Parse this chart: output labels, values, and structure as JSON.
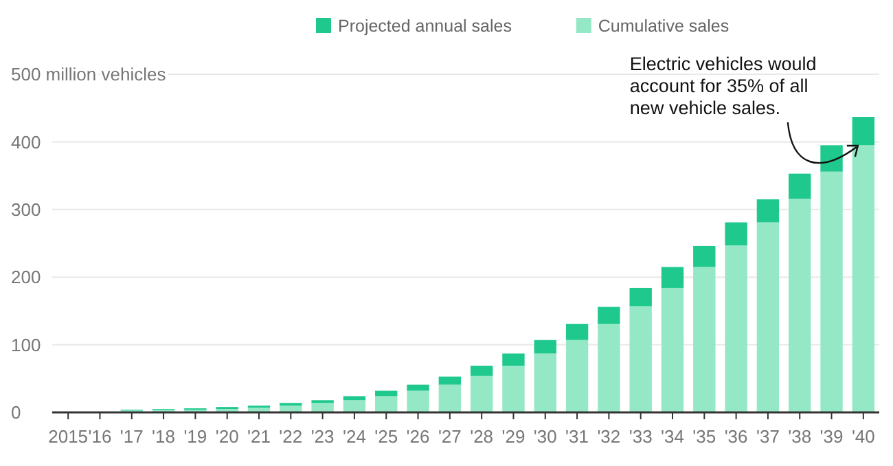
{
  "chart_data": {
    "type": "bar",
    "stacked": true,
    "categories": [
      "2015",
      "'16",
      "'17",
      "'18",
      "'19",
      "'20",
      "'21",
      "'22",
      "'23",
      "'24",
      "'25",
      "'26",
      "'27",
      "'28",
      "'29",
      "'30",
      "'31",
      "'32",
      "'33",
      "'34",
      "'35",
      "'36",
      "'37",
      "'38",
      "'39",
      "'40"
    ],
    "series": [
      {
        "name": "Cumulative sales",
        "color": "#95e8c6",
        "values": [
          null,
          null,
          3,
          4,
          4,
          5,
          7,
          10,
          14,
          18,
          24,
          32,
          41,
          54,
          69,
          87,
          107,
          131,
          157,
          184,
          215,
          247,
          281,
          316,
          356,
          395
        ]
      },
      {
        "name": "Projected annual sales",
        "color": "#1fc98e",
        "values": [
          1,
          1,
          1,
          1,
          2,
          3,
          3,
          4,
          4,
          6,
          8,
          9,
          12,
          15,
          18,
          20,
          24,
          25,
          27,
          31,
          31,
          34,
          34,
          37,
          39,
          42
        ]
      }
    ],
    "ylim": [
      0,
      500
    ],
    "yticks": [
      0,
      100,
      200,
      300,
      400,
      {
        "value": 500,
        "label": "500 million vehicles"
      }
    ],
    "grid": "y",
    "legend": "top",
    "annotations": [
      {
        "text": "Electric vehicles would account for 35% of all new vehicle sales.",
        "x": "'40",
        "y": 437
      }
    ]
  }
}
